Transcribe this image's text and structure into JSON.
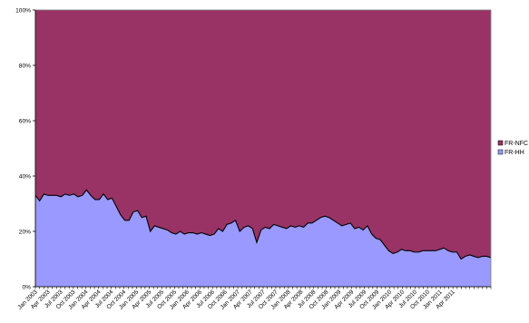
{
  "chart_data": {
    "type": "area",
    "stacked": "percent",
    "title": "",
    "xlabel": "",
    "ylabel": "",
    "ylim": [
      0,
      100
    ],
    "yticks": [
      "0%",
      "20%",
      "40%",
      "60%",
      "80%",
      "100%"
    ],
    "grid": false,
    "legend_position": "right",
    "x_labels": [
      "Jan 2003",
      "Apr 2003",
      "Jul 2003",
      "Oct 2003",
      "Jan 2004",
      "Apr 2004",
      "Jul 2004",
      "Oct 2004",
      "Jan 2005",
      "Apr 2005",
      "Jul 2005",
      "Oct 2005",
      "Jan 2006",
      "Apr 2006",
      "Jul 2006",
      "Oct 2006",
      "Jan 2007",
      "Apr 2007",
      "Jul 2007",
      "Oct 2007",
      "Jan 2008",
      "Apr 2008",
      "Jul 2008",
      "Oct 2008",
      "Jan 2009",
      "Apr 2009",
      "Jul 2009",
      "Oct 2009",
      "Jan 2010",
      "Apr 2010",
      "Jul 2010",
      "Oct 2010",
      "Jan 2011",
      "Apr 2011"
    ],
    "series": [
      {
        "name": "FR-HH",
        "color": "#9999ff",
        "values": [
          33,
          31,
          33.5,
          33,
          33,
          33,
          32.5,
          33.5,
          33,
          33.5,
          32.5,
          33,
          35,
          33,
          31.5,
          31.5,
          33.5,
          31.5,
          32,
          29,
          26,
          24,
          24,
          27,
          27.5,
          25,
          25.5,
          20,
          22,
          21.5,
          21,
          20.5,
          19.5,
          19,
          20,
          19,
          19.5,
          19.5,
          19,
          19.5,
          19,
          18.5,
          19,
          21,
          20,
          22.5,
          23,
          24,
          20,
          21.5,
          22,
          21,
          16,
          20.5,
          21.5,
          21,
          22.5,
          22,
          21.5,
          21,
          22,
          21.5,
          22,
          21.5,
          23,
          23,
          24,
          25,
          25.5,
          25,
          24,
          23,
          22,
          22.5,
          23,
          21,
          21.5,
          20.5,
          22,
          19,
          17.5,
          17,
          15,
          13,
          12,
          12.5,
          13.5,
          13,
          13,
          12.5,
          12.5,
          13,
          13,
          13,
          13,
          13.5,
          14,
          13,
          12.5,
          12.5,
          10,
          11,
          11.5,
          11,
          10.5,
          11,
          11,
          10.5
        ]
      },
      {
        "name": "FR-NFC",
        "color": "#993366",
        "values": "remainder-to-100"
      }
    ]
  }
}
